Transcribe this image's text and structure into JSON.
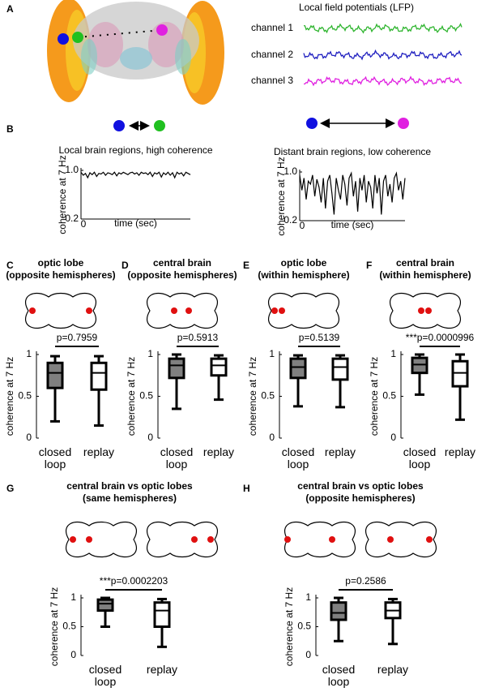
{
  "panel_labels": [
    "A",
    "B",
    "C",
    "D",
    "E",
    "F",
    "G",
    "H"
  ],
  "lfp": {
    "title": "Local field potentials (LFP)",
    "channels": [
      "channel 1",
      "channel 2",
      "channel 3"
    ]
  },
  "chart_data": [
    {
      "type": "line",
      "title": "Local brain regions, high coherence",
      "x_label": "time (sec)",
      "y_label": "coherence at 7 Hz",
      "color": "#000000",
      "values": [
        0.97,
        0.92,
        0.95,
        0.88,
        0.96,
        0.93,
        0.97,
        0.9,
        0.95,
        0.94,
        0.97,
        0.92,
        0.96,
        0.95,
        0.93,
        0.97,
        0.91,
        0.96,
        0.94,
        0.97,
        0.95,
        0.93,
        0.96,
        0.97,
        0.94,
        0.96,
        0.92,
        0.97,
        0.95,
        0.96,
        0.93,
        0.97,
        0.9,
        0.96,
        0.94,
        0.97,
        0.89,
        0.96,
        0.93,
        0.97,
        0.92,
        0.96,
        0.88,
        0.97,
        0.94,
        0.96,
        0.91,
        0.97,
        0.95,
        0.93
      ],
      "xlim": [
        0,
        49
      ],
      "xticks": [
        0
      ],
      "ylim": [
        0.2,
        1
      ],
      "yticks": [
        0.2,
        {
          "value": 1,
          "label": "1.0"
        }
      ]
    },
    {
      "type": "line",
      "title": "Distant brain regions, low coherence",
      "x_label": "time (sec)",
      "y_label": "coherence at 7 Hz",
      "color": "#000000",
      "values": [
        0.95,
        0.7,
        0.9,
        0.55,
        0.85,
        0.8,
        0.95,
        0.6,
        0.88,
        0.75,
        0.5,
        0.9,
        0.4,
        0.85,
        0.95,
        0.65,
        0.3,
        0.9,
        0.7,
        0.55,
        0.95,
        0.8,
        0.45,
        0.9,
        0.98,
        0.6,
        0.85,
        0.35,
        0.9,
        0.7,
        0.95,
        0.5,
        0.85,
        0.75,
        0.4,
        0.95,
        0.65,
        0.9,
        0.3,
        0.85,
        0.95,
        0.6,
        0.8,
        0.5,
        0.9,
        0.98,
        0.7,
        0.85,
        0.55,
        0.9
      ],
      "xlim": [
        0,
        49
      ],
      "xticks": [
        0
      ],
      "ylim": [
        0.2,
        1
      ],
      "yticks": [
        0.2,
        {
          "value": 1,
          "label": "1.0"
        }
      ]
    },
    {
      "type": "box",
      "title_lines": [
        "optic lobe",
        "(opposite hemispheres)"
      ],
      "annotation": "p=0.7959",
      "y_label": "coherence at 7 Hz",
      "categories": [
        "closed loop",
        "replay"
      ],
      "ylim": [
        0,
        1
      ],
      "yticks": [
        0,
        0.5,
        1
      ],
      "boxes": [
        {
          "color": "#808080",
          "min": 0.2,
          "q1": 0.6,
          "median": 0.78,
          "q3": 0.9,
          "max": 0.98
        },
        {
          "color": "#ffffff",
          "min": 0.15,
          "q1": 0.58,
          "median": 0.78,
          "q3": 0.9,
          "max": 0.98
        }
      ]
    },
    {
      "type": "box",
      "title_lines": [
        "central brain",
        "(opposite hemispheres)"
      ],
      "annotation": "p=0.5913",
      "y_label": "coherence at 7 Hz",
      "categories": [
        "closed loop",
        "replay"
      ],
      "ylim": [
        0,
        1
      ],
      "yticks": [
        0,
        0.5,
        1
      ],
      "boxes": [
        {
          "color": "#808080",
          "min": 0.35,
          "q1": 0.72,
          "median": 0.87,
          "q3": 0.95,
          "max": 1
        },
        {
          "color": "#ffffff",
          "min": 0.46,
          "q1": 0.75,
          "median": 0.87,
          "q3": 0.95,
          "max": 0.99
        }
      ]
    },
    {
      "type": "box",
      "title_lines": [
        "optic lobe",
        "(within hemisphere)"
      ],
      "annotation": "p=0.5139",
      "y_label": "coherence at 7 Hz",
      "categories": [
        "closed loop",
        "replay"
      ],
      "ylim": [
        0,
        1
      ],
      "yticks": [
        0,
        0.5,
        1
      ],
      "boxes": [
        {
          "color": "#808080",
          "min": 0.38,
          "q1": 0.72,
          "median": 0.85,
          "q3": 0.95,
          "max": 0.99
        },
        {
          "color": "#ffffff",
          "min": 0.37,
          "q1": 0.7,
          "median": 0.85,
          "q3": 0.95,
          "max": 0.99
        }
      ]
    },
    {
      "type": "box",
      "title_lines": [
        "central brain",
        "(within hemisphere)"
      ],
      "annotation": "***p=0.0000996",
      "y_label": "coherence at 7 Hz",
      "categories": [
        "closed loop",
        "replay"
      ],
      "ylim": [
        0,
        1
      ],
      "yticks": [
        0,
        0.5,
        1
      ],
      "boxes": [
        {
          "color": "#808080",
          "min": 0.52,
          "q1": 0.78,
          "median": 0.88,
          "q3": 0.96,
          "max": 1
        },
        {
          "color": "#ffffff",
          "min": 0.22,
          "q1": 0.62,
          "median": 0.78,
          "q3": 0.92,
          "max": 1
        }
      ]
    },
    {
      "type": "box",
      "title_lines": [
        "central brain vs optic lobes",
        "(same hemispheres)"
      ],
      "annotation": "***p=0.0002203",
      "y_label": "coherence at 7 Hz",
      "categories": [
        "closed loop",
        "replay"
      ],
      "ylim": [
        0,
        1
      ],
      "yticks": [
        0,
        0.5,
        1
      ],
      "boxes": [
        {
          "color": "#808080",
          "min": 0.5,
          "q1": 0.78,
          "median": 0.9,
          "q3": 0.97,
          "max": 1
        },
        {
          "color": "#ffffff",
          "min": 0.15,
          "q1": 0.5,
          "median": 0.78,
          "q3": 0.92,
          "max": 0.98
        }
      ]
    },
    {
      "type": "box",
      "title_lines": [
        "central brain vs optic lobes",
        "(opposite hemispheres)"
      ],
      "annotation": "p=0.2586",
      "y_label": "coherence at 7 Hz",
      "categories": [
        "closed loop",
        "replay"
      ],
      "ylim": [
        0,
        1
      ],
      "yticks": [
        0,
        0.5,
        1
      ],
      "boxes": [
        {
          "color": "#808080",
          "min": 0.25,
          "q1": 0.62,
          "median": 0.74,
          "q3": 0.92,
          "max": 1
        },
        {
          "color": "#ffffff",
          "min": 0.2,
          "q1": 0.65,
          "median": 0.78,
          "q3": 0.92,
          "max": 0.98
        }
      ]
    }
  ]
}
